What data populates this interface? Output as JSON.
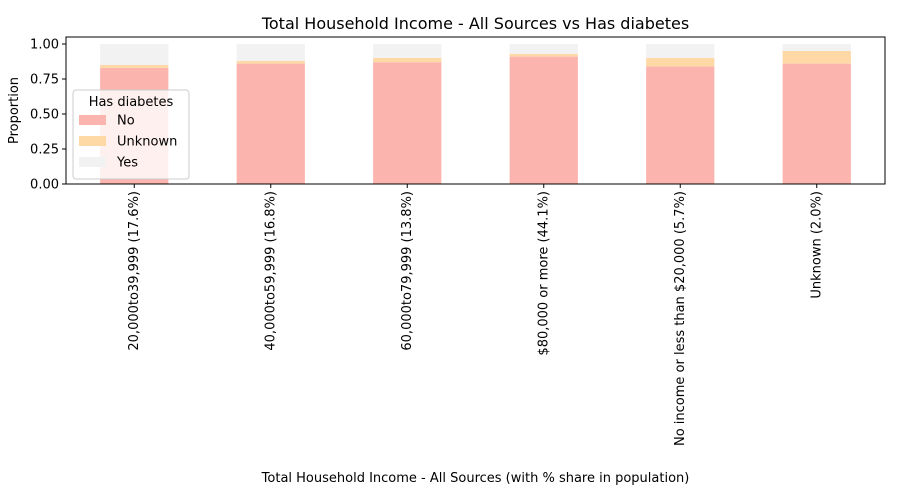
{
  "chart_data": {
    "type": "bar",
    "stacked": true,
    "title": "Total Household Income - All Sources vs Has diabetes",
    "xlabel": "Total Household Income - All Sources (with % share in population)",
    "ylabel": "Proportion",
    "ylim": [
      0,
      1.05
    ],
    "yticks": [
      "0.00",
      "0.25",
      "0.50",
      "0.75",
      "1.00"
    ],
    "categories": [
      "20,000to39,999 (17.6%)",
      "40,000to59,999 (16.8%)",
      "60,000to79,999 (13.8%)",
      "$80,000 or more (44.1%)",
      "No income or less than $20,000 (5.7%)",
      "Unknown (2.0%)"
    ],
    "series": [
      {
        "name": "No",
        "color": "#fbb4ae",
        "values": [
          0.83,
          0.86,
          0.87,
          0.91,
          0.84,
          0.86
        ]
      },
      {
        "name": "Unknown",
        "color": "#fed9a6",
        "values": [
          0.02,
          0.02,
          0.03,
          0.02,
          0.06,
          0.09
        ]
      },
      {
        "name": "Yes",
        "color": "#f2f2f2",
        "values": [
          0.15,
          0.12,
          0.1,
          0.07,
          0.1,
          0.05
        ]
      }
    ],
    "legend": {
      "title": "Has diabetes",
      "placement": "center-left"
    },
    "grid": false
  }
}
